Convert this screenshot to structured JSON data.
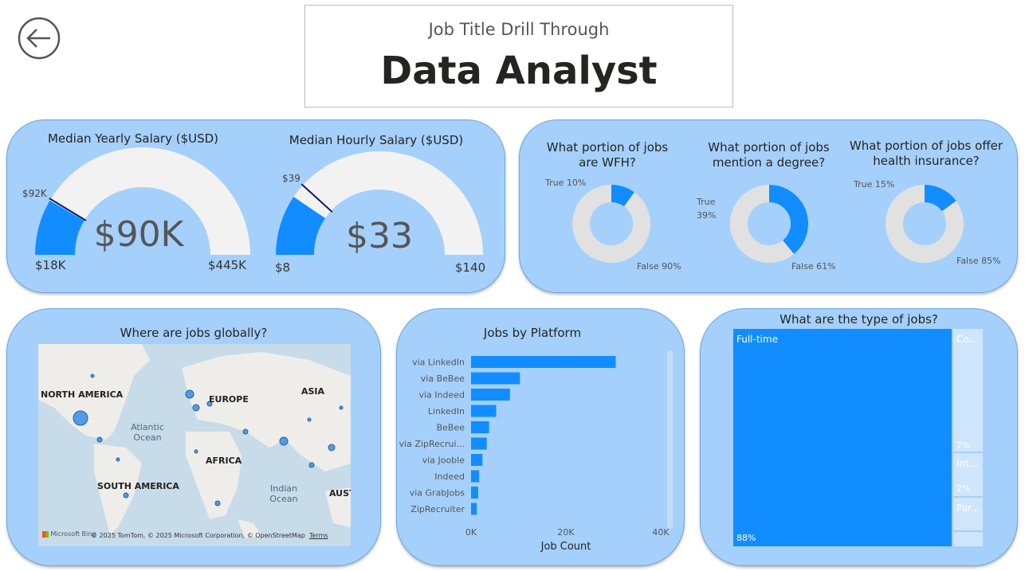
{
  "header": {
    "subtitle": "Job Title Drill Through",
    "title": "Data Analyst"
  },
  "salary": {
    "yearly": {
      "title": "Median Yearly Salary ($USD)",
      "value": "$90K",
      "min": "$18K",
      "max": "$445K",
      "target": "$92K",
      "min_num": 18,
      "max_num": 445,
      "value_num": 90,
      "target_num": 92
    },
    "hourly": {
      "title": "Median Hourly Salary ($USD)",
      "value": "$33",
      "min": "$8",
      "max": "$140",
      "target": "$39",
      "min_num": 8,
      "max_num": 140,
      "value_num": 33,
      "target_num": 39
    }
  },
  "portions": [
    {
      "title": "What portion of jobs are WFH?",
      "true_label": "True 10%",
      "false_label": "False 90%",
      "true_pct": 10
    },
    {
      "title": "What portion of jobs mention a degree?",
      "true_label": "True",
      "true_pct_label": "39%",
      "false_label": "False 61%",
      "true_pct": 39
    },
    {
      "title": "What portion of jobs offer health insurance?",
      "true_label": "True 15%",
      "false_label": "False 85%",
      "true_pct": 15
    }
  ],
  "map": {
    "title": "Where are jobs globally?",
    "labels": {
      "north_america": "NORTH AMERICA",
      "europe": "EUROPE",
      "asia": "ASIA",
      "africa": "AFRICA",
      "south_america": "SOUTH AMERICA",
      "atlantic": "Atlantic Ocean",
      "indian": "Indian Ocean",
      "australia": "AUST"
    },
    "attribution": "© 2025 TomTom, © 2025 Microsoft Corporation, © OpenStreetMap",
    "terms": "Terms",
    "brand": "Microsoft Bing"
  },
  "chart_data": {
    "type": "bar",
    "orientation": "horizontal",
    "title": "Jobs by Platform",
    "xlabel": "Job Count",
    "ylabel": "",
    "xlim": [
      0,
      40000
    ],
    "x_ticks": [
      "0K",
      "20K",
      "40K"
    ],
    "categories": [
      "via LinkedIn",
      "via BeBee",
      "via Indeed",
      "LinkedIn",
      "BeBee",
      "via ZipRecrui...",
      "via Jooble",
      "Indeed",
      "via GrabJobs",
      "ZipRecruiter"
    ],
    "values": [
      30500,
      10300,
      8200,
      5300,
      3800,
      3300,
      2400,
      1700,
      1500,
      1200
    ],
    "color": "#118dff"
  },
  "treemap": {
    "title": "What are the type of jobs?",
    "items": [
      {
        "label": "Full-time",
        "pct": "88%"
      },
      {
        "label": "Co...",
        "pct": "7%"
      },
      {
        "label": "Int...",
        "pct": "2%"
      },
      {
        "label": "Par...",
        "pct": ""
      }
    ]
  },
  "colors": {
    "accent": "#118dff",
    "card_bg": "#a5d0fb",
    "gauge_bg": "#f3f2f2",
    "target_line": "#0a1a6a"
  },
  "icons": {
    "back": "back-arrow-icon"
  }
}
